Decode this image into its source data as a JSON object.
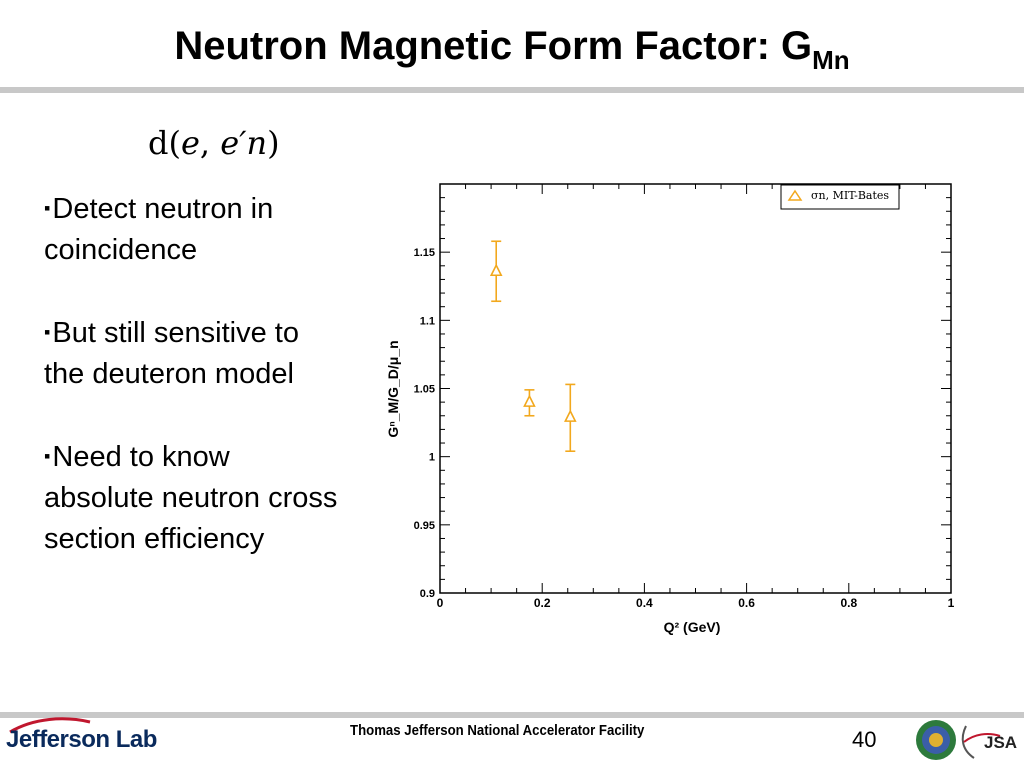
{
  "slide": {
    "title_main": "Neutron Magnetic Form Factor: G",
    "title_sub": "Mn",
    "formula": {
      "d": "d(",
      "e": "e",
      "comma": ", ",
      "eprime": "e′n",
      "close": ")"
    },
    "bullets": [
      "Detect neutron in coincidence",
      "But still sensitive to the deuteron model",
      "Need to know absolute neutron cross section efficiency"
    ],
    "bullet_marker": "▪"
  },
  "footer": {
    "organization": "Thomas Jefferson National Accelerator Facility",
    "page_number": "40",
    "lab_logo_text": "Jefferson Lab",
    "jsa_logo_text": "JSA"
  },
  "chart_data": {
    "type": "scatter",
    "xlabel": "Q² (GeV)",
    "ylabel": "Gⁿ_M/G_D/μ_n",
    "xlim": [
      0,
      1
    ],
    "ylim": [
      0.9,
      1.2
    ],
    "xticks": [
      "0",
      "0.2",
      "0.4",
      "0.6",
      "0.8",
      "1"
    ],
    "yticks": [
      "0.9",
      "0.95",
      "1",
      "1.05",
      "1.1",
      "1.15"
    ],
    "legend_placement": "top-right",
    "series": [
      {
        "name": "σn, MIT-Bates",
        "color": "#f2a81d",
        "marker": "triangle-open",
        "points": [
          {
            "x": 0.11,
            "y": 1.136,
            "ylo": 1.114,
            "yhi": 1.158
          },
          {
            "x": 0.175,
            "y": 1.04,
            "ylo": 1.03,
            "yhi": 1.049
          },
          {
            "x": 0.255,
            "y": 1.029,
            "ylo": 1.004,
            "yhi": 1.053
          }
        ]
      }
    ]
  },
  "colors": {
    "series": "#f2a81d",
    "divider": "#c8c8c8",
    "logo_blue": "#0a2a5c",
    "logo_red": "#c0172e"
  }
}
